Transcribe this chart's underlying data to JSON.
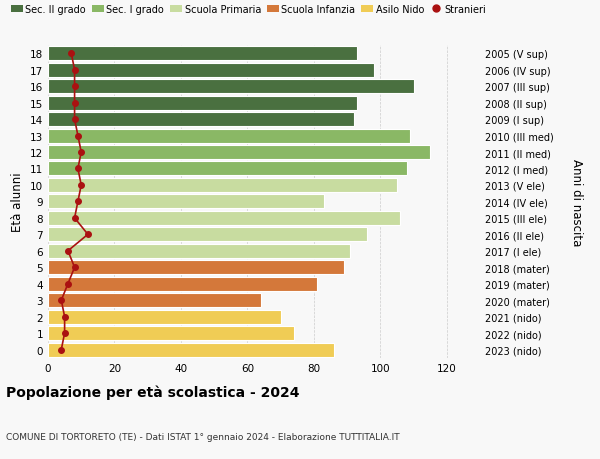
{
  "ages": [
    0,
    1,
    2,
    3,
    4,
    5,
    6,
    7,
    8,
    9,
    10,
    11,
    12,
    13,
    14,
    15,
    16,
    17,
    18
  ],
  "bar_values": [
    86,
    74,
    70,
    64,
    81,
    89,
    91,
    96,
    106,
    83,
    105,
    108,
    115,
    109,
    92,
    93,
    110,
    98,
    93
  ],
  "stranieri": [
    4,
    5,
    5,
    4,
    6,
    8,
    6,
    12,
    8,
    9,
    10,
    9,
    10,
    9,
    8,
    8,
    8,
    8,
    7
  ],
  "right_labels": [
    "2023 (nido)",
    "2022 (nido)",
    "2021 (nido)",
    "2020 (mater)",
    "2019 (mater)",
    "2018 (mater)",
    "2017 (I ele)",
    "2016 (II ele)",
    "2015 (III ele)",
    "2014 (IV ele)",
    "2013 (V ele)",
    "2012 (I med)",
    "2011 (II med)",
    "2010 (III med)",
    "2009 (I sup)",
    "2008 (II sup)",
    "2007 (III sup)",
    "2006 (IV sup)",
    "2005 (V sup)"
  ],
  "bar_colors_by_age": {
    "0": "#f0cc55",
    "1": "#f0cc55",
    "2": "#f0cc55",
    "3": "#d4783a",
    "4": "#d4783a",
    "5": "#d4783a",
    "6": "#c8dca0",
    "7": "#c8dca0",
    "8": "#c8dca0",
    "9": "#c8dca0",
    "10": "#c8dca0",
    "11": "#8ab865",
    "12": "#8ab865",
    "13": "#8ab865",
    "14": "#4a7040",
    "15": "#4a7040",
    "16": "#4a7040",
    "17": "#4a7040",
    "18": "#4a7040"
  },
  "stranieri_color": "#aa1111",
  "line_color": "#aa1111",
  "title": "Popolazione per età scolastica - 2024",
  "subtitle": "COMUNE DI TORTORETO (TE) - Dati ISTAT 1° gennaio 2024 - Elaborazione TUTTITALIA.IT",
  "ylabel": "Età alunni",
  "ylabel2": "Anni di nascita",
  "legend_labels": [
    "Sec. II grado",
    "Sec. I grado",
    "Scuola Primaria",
    "Scuola Infanzia",
    "Asilo Nido",
    "Stranieri"
  ],
  "legend_colors": [
    "#4a7040",
    "#8ab865",
    "#c8dca0",
    "#d4783a",
    "#f0cc55",
    "#aa1111"
  ],
  "background_color": "#f8f8f8"
}
